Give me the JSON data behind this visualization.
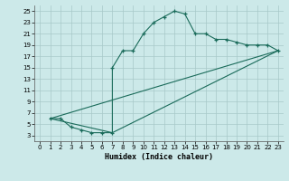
{
  "xlabel": "Humidex (Indice chaleur)",
  "bg_color": "#cce9e9",
  "grid_color": "#a8c8c8",
  "line_color": "#1a6b5a",
  "xlim": [
    -0.5,
    23.5
  ],
  "ylim": [
    2,
    26
  ],
  "xticks": [
    0,
    1,
    2,
    3,
    4,
    5,
    6,
    7,
    8,
    9,
    10,
    11,
    12,
    13,
    14,
    15,
    16,
    17,
    18,
    19,
    20,
    21,
    22,
    23
  ],
  "yticks": [
    3,
    5,
    7,
    9,
    11,
    13,
    15,
    17,
    19,
    21,
    23,
    25
  ],
  "curve_x": [
    1,
    2,
    3,
    4,
    5,
    6,
    7,
    7,
    8,
    9,
    10,
    11,
    12,
    13,
    14,
    15,
    16,
    17,
    18,
    19,
    20,
    21,
    22,
    23
  ],
  "curve_y": [
    6,
    6,
    4.5,
    4,
    3.5,
    3.5,
    3.5,
    15,
    18,
    18,
    21,
    23,
    24,
    25,
    24.5,
    21,
    21,
    20,
    20,
    19.5,
    19,
    19,
    19,
    18
  ],
  "line1_x": [
    1,
    23
  ],
  "line1_y": [
    6,
    18
  ],
  "line2_x": [
    1,
    7,
    23
  ],
  "line2_y": [
    6,
    3.5,
    18
  ]
}
